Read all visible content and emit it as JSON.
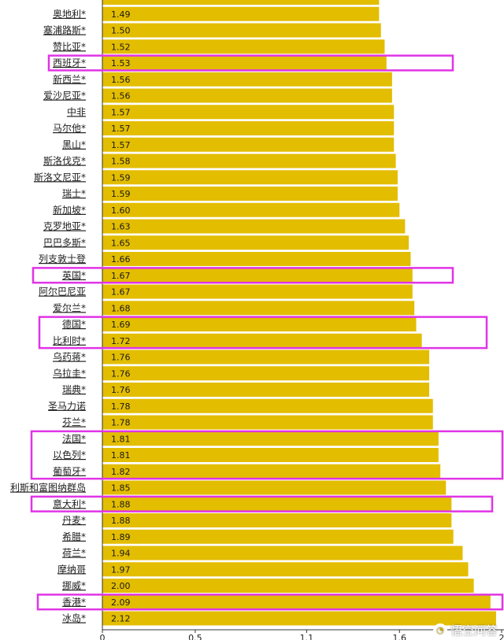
{
  "colors": {
    "bar": "#e3bd00",
    "highlight": "#e034e6",
    "axis": "#333333"
  },
  "chart_data": {
    "type": "bar",
    "orientation": "horizontal",
    "categories": [
      "",
      "奥地利*",
      "塞浦路斯*",
      "赞比亚*",
      "西班牙*",
      "新西兰*",
      "爱沙尼亚*",
      "中非",
      "马尔他*",
      "黑山*",
      "斯洛伐克*",
      "斯洛文尼亚*",
      "瑞士*",
      "新加坡*",
      "克罗地亚*",
      "巴巴多斯*",
      "列支敦士登",
      "英国*",
      "阿尔巴尼亚",
      "爱尔兰*",
      "德国*",
      "比利时*",
      "乌药蒋*",
      "乌拉圭*",
      "瑞典*",
      "圣马力诺",
      "芬兰*",
      "法国*",
      "以色列*",
      "葡萄牙*",
      "利斯和富图纳群岛",
      "意大利*",
      "丹麦*",
      "希腊*",
      "荷兰*",
      "摩纳哥",
      "挪威*",
      "香港*",
      "冰岛*"
    ],
    "values": [
      1.49,
      1.49,
      1.5,
      1.52,
      1.53,
      1.56,
      1.56,
      1.57,
      1.57,
      1.57,
      1.58,
      1.59,
      1.59,
      1.6,
      1.63,
      1.65,
      1.66,
      1.67,
      1.67,
      1.68,
      1.69,
      1.72,
      1.76,
      1.76,
      1.76,
      1.78,
      1.78,
      1.81,
      1.81,
      1.82,
      1.85,
      1.88,
      1.88,
      1.89,
      1.94,
      1.97,
      2.0,
      2.09,
      2.12
    ],
    "value_labels": [
      "",
      "1.49",
      "1.50",
      "1.52",
      "1.53",
      "1.56",
      "1.56",
      "1.57",
      "1.57",
      "1.57",
      "1.58",
      "1.59",
      "1.59",
      "1.60",
      "1.63",
      "1.65",
      "1.66",
      "1.67",
      "1.67",
      "1.68",
      "1.69",
      "1.72",
      "1.76",
      "1.76",
      "1.76",
      "1.78",
      "1.78",
      "1.81",
      "1.81",
      "1.82",
      "1.85",
      "1.88",
      "1.88",
      "1.89",
      "1.94",
      "1.97",
      "2.00",
      "2.09",
      "2.12"
    ],
    "x_ticks": [
      {
        "value": 0,
        "label": "0"
      },
      {
        "value": 0.5,
        "label": "0.5"
      },
      {
        "value": 1.1,
        "label": "1.1"
      },
      {
        "value": 1.6,
        "label": "1.6"
      },
      {
        "value": 2.15,
        "label": "2"
      }
    ],
    "xlim": [
      0,
      2.15
    ],
    "highlighted_groups": [
      {
        "rows": [
          4
        ]
      },
      {
        "rows": [
          17
        ]
      },
      {
        "rows": [
          20,
          21
        ]
      },
      {
        "rows": [
          27,
          28,
          29
        ]
      },
      {
        "rows": [
          31
        ]
      },
      {
        "rows": [
          37
        ]
      }
    ]
  },
  "watermark": {
    "text": "悟空问答"
  }
}
